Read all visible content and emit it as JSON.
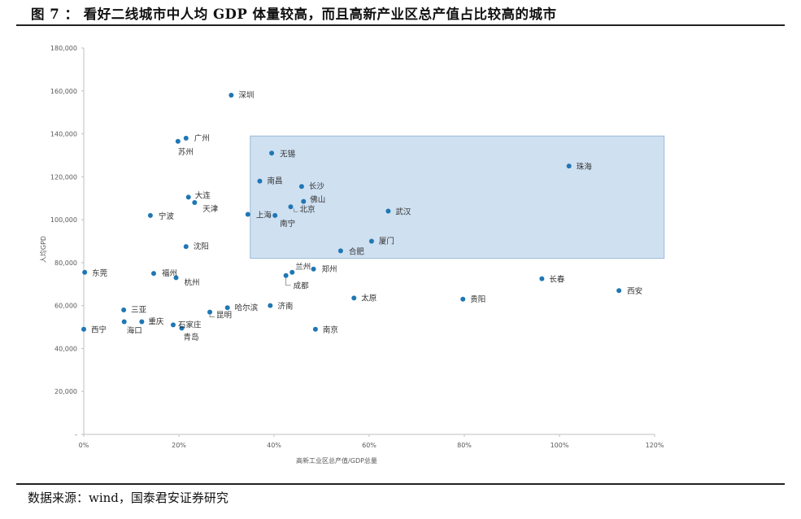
{
  "figure": {
    "title": "图 7 ： 看好二线城市中人均 GDP 体量较高，而且高新产业区总产值占比较高的城市",
    "source": "数据来源：wind，国泰君安证券研究"
  },
  "colors": {
    "point": "#1f77b4",
    "highlight_fill": "#cfe0f1",
    "highlight_stroke": "#9bbad8",
    "axis": "#bfbfbf"
  },
  "chart_data": {
    "type": "scatter",
    "xlabel": "高新工业区总产值/GDP总量",
    "ylabel": "人均GPD",
    "xlim": [
      0,
      1.2
    ],
    "ylim": [
      0,
      180000
    ],
    "x_ticks": [
      "0%",
      "20%",
      "40%",
      "60%",
      "80%",
      "100%",
      "120%"
    ],
    "y_ticks": [
      "-",
      "20,000",
      "40,000",
      "60,000",
      "80,000",
      "100,000",
      "120,000",
      "140,000",
      "160,000",
      "180,000"
    ],
    "highlight_region": {
      "x": [
        0.35,
        1.22
      ],
      "y": [
        82000,
        139000
      ]
    },
    "points": [
      {
        "name": "深圳",
        "x": 0.31,
        "y": 158000
      },
      {
        "name": "广州",
        "x": 0.215,
        "y": 138000
      },
      {
        "name": "苏州",
        "x": 0.198,
        "y": 136500
      },
      {
        "name": "无锡",
        "x": 0.395,
        "y": 131000
      },
      {
        "name": "珠海",
        "x": 1.02,
        "y": 125000
      },
      {
        "name": "南昌",
        "x": 0.37,
        "y": 118000
      },
      {
        "name": "长沙",
        "x": 0.458,
        "y": 115500
      },
      {
        "name": "大连",
        "x": 0.22,
        "y": 110500
      },
      {
        "name": "佛山",
        "x": 0.462,
        "y": 108500
      },
      {
        "name": "天津",
        "x": 0.233,
        "y": 108000
      },
      {
        "name": "北京",
        "x": 0.435,
        "y": 106000
      },
      {
        "name": "武汉",
        "x": 0.64,
        "y": 104000
      },
      {
        "name": "上海",
        "x": 0.345,
        "y": 102500
      },
      {
        "name": "南宁",
        "x": 0.402,
        "y": 102000
      },
      {
        "name": "宁波",
        "x": 0.14,
        "y": 102000
      },
      {
        "name": "厦门",
        "x": 0.605,
        "y": 90000
      },
      {
        "name": "沈阳",
        "x": 0.215,
        "y": 87500
      },
      {
        "name": "合肥",
        "x": 0.54,
        "y": 85500
      },
      {
        "name": "郑州",
        "x": 0.483,
        "y": 77000
      },
      {
        "name": "兰州",
        "x": 0.438,
        "y": 75500
      },
      {
        "name": "东莞",
        "x": 0.002,
        "y": 75500
      },
      {
        "name": "福州",
        "x": 0.147,
        "y": 75000
      },
      {
        "name": "成都",
        "x": 0.425,
        "y": 74000
      },
      {
        "name": "杭州",
        "x": 0.194,
        "y": 73000
      },
      {
        "name": "长春",
        "x": 0.963,
        "y": 72500
      },
      {
        "name": "西安",
        "x": 1.125,
        "y": 67000
      },
      {
        "name": "太原",
        "x": 0.568,
        "y": 63500
      },
      {
        "name": "贵阳",
        "x": 0.797,
        "y": 63000
      },
      {
        "name": "济南",
        "x": 0.392,
        "y": 60000
      },
      {
        "name": "哈尔滨",
        "x": 0.302,
        "y": 59000
      },
      {
        "name": "三亚",
        "x": 0.084,
        "y": 58000
      },
      {
        "name": "昆明",
        "x": 0.265,
        "y": 57000
      },
      {
        "name": "海口",
        "x": 0.085,
        "y": 52500
      },
      {
        "name": "重庆",
        "x": 0.122,
        "y": 52500
      },
      {
        "name": "石家庄",
        "x": 0.188,
        "y": 51000
      },
      {
        "name": "青岛",
        "x": 0.206,
        "y": 49500
      },
      {
        "name": "南京",
        "x": 0.487,
        "y": 49000
      },
      {
        "name": "西宁",
        "x": 0.0,
        "y": 49000
      }
    ]
  }
}
